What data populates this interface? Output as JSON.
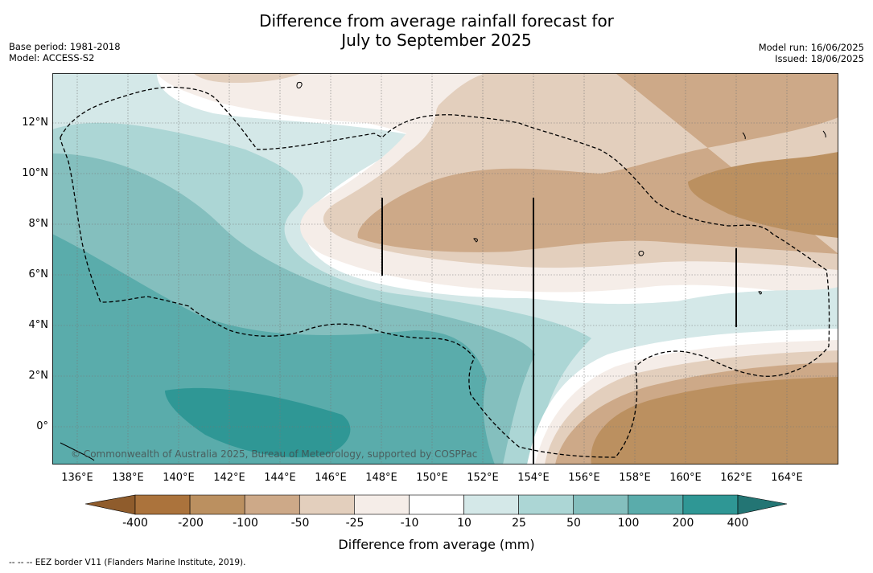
{
  "title": {
    "line1": "Difference from average rainfall forecast for",
    "line2": "July to September 2025"
  },
  "meta_left": {
    "base_period": "Base period: 1981-2018",
    "model": "Model: ACCESS-S2"
  },
  "meta_right": {
    "model_run": "Model run: 16/06/2025",
    "issued": "Issued: 18/06/2025"
  },
  "map": {
    "lon_range": [
      135,
      166
    ],
    "lat_range": [
      -1.5,
      14
    ],
    "longitude_ticks": [
      "136°E",
      "138°E",
      "140°E",
      "142°E",
      "144°E",
      "146°E",
      "148°E",
      "150°E",
      "152°E",
      "154°E",
      "156°E",
      "158°E",
      "160°E",
      "162°E",
      "164°E"
    ],
    "latitude_ticks": [
      "12°N",
      "10°N",
      "8°N",
      "6°N",
      "4°N",
      "2°N",
      "0°"
    ],
    "grid": "dotted",
    "copyright": "© Commonwealth of Australia 2025, Bureau of Meteorology, supported by COSPPac"
  },
  "colorbar": {
    "labels": [
      "-400",
      "-200",
      "-100",
      "-50",
      "-25",
      "-10",
      "10",
      "25",
      "50",
      "100",
      "200",
      "400"
    ],
    "colors": [
      "#ab733c",
      "#bb9060",
      "#cda988",
      "#e3cfbd",
      "#f5ede8",
      "#ffffff",
      "#d4e8e8",
      "#acd6d5",
      "#84bfbe",
      "#5aacab",
      "#2f9795"
    ],
    "extend_low_color": "#8f5c2c",
    "extend_high_color": "#237574",
    "title": "Difference from average (mm)"
  },
  "footnote": "--  --  -- EEZ border V11 (Flanders Marine Institute, 2019)."
}
